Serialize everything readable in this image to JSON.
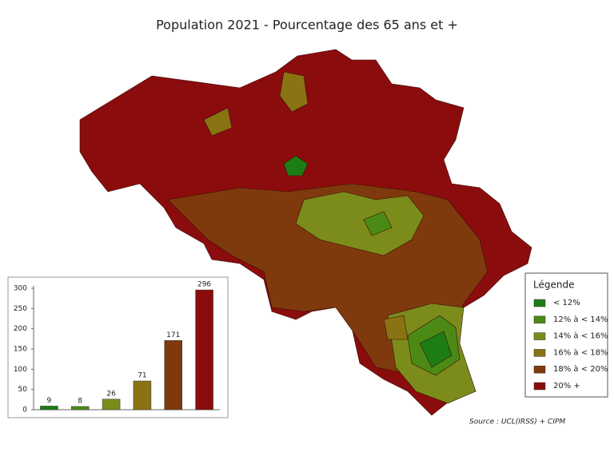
{
  "title": "Population 2021 - Pourcentage des 65 ans et +",
  "legend": {
    "title": "Légende",
    "items": [
      {
        "label": "< 12%",
        "color": "#1c7d14"
      },
      {
        "label": "12% à < 14%",
        "color": "#4c8a16"
      },
      {
        "label": "14% à < 16%",
        "color": "#7b8c1a"
      },
      {
        "label": "16% à < 18%",
        "color": "#8a7312"
      },
      {
        "label": "18% à < 20%",
        "color": "#7e3a0c"
      },
      {
        "label": "20% +",
        "color": "#8b0c0c"
      }
    ]
  },
  "source": "Source : UCL(IRSS) + CIPM",
  "chart_data": {
    "type": "bar",
    "values": [
      9,
      8,
      26,
      71,
      171,
      296
    ],
    "colors": [
      "#1c7d14",
      "#4c8a16",
      "#7b8c1a",
      "#8a7312",
      "#7e3a0c",
      "#8b0c0c"
    ],
    "ylim": [
      0,
      300
    ],
    "yticks": [
      0,
      50,
      100,
      150,
      200,
      250,
      300
    ]
  }
}
